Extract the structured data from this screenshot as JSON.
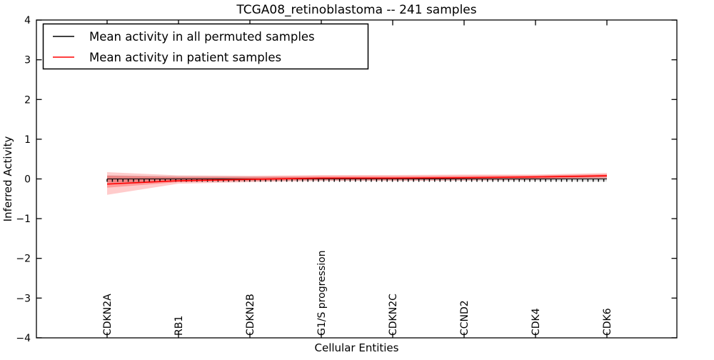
{
  "chart_data": {
    "type": "line",
    "title": "TCGA08_retinoblastoma -- 241 samples",
    "xlabel": "Cellular Entities",
    "ylabel": "Inferred Activity",
    "ylim": [
      -4,
      4
    ],
    "grid": false,
    "axes_background": "#ffffff",
    "ytick_values": [
      4,
      3,
      2,
      1,
      0,
      -1,
      -2,
      -3,
      -4
    ],
    "ytick_labels": [
      "4",
      "3",
      "2",
      "1",
      "0",
      "−1",
      "−2",
      "−3",
      "−4"
    ],
    "categories": [
      "CDKN2A",
      "RB1",
      "CDKN2B",
      "G1/S progression",
      "CDKN2C",
      "CCND2",
      "CDK4",
      "CDK6"
    ],
    "xtick_rotation": 90,
    "legend": {
      "position": "upper left",
      "entries": [
        {
          "label": "Mean activity in all permuted samples",
          "color": "#000000"
        },
        {
          "label": "Mean activity in patient samples",
          "color": "#ff0000"
        }
      ]
    },
    "series": [
      {
        "name": "Mean activity in all permuted samples",
        "color": "#000000",
        "marker": "tick-down",
        "values": [
          0.0,
          0.0,
          0.0,
          0.0,
          0.0,
          0.0,
          0.0,
          0.0
        ],
        "band": {
          "color": "#888888",
          "opacity": 0.3,
          "upper": [
            0.09,
            0.07,
            0.06,
            0.05,
            0.05,
            0.05,
            0.05,
            0.06
          ],
          "lower": [
            -0.09,
            -0.07,
            -0.06,
            -0.05,
            -0.05,
            -0.05,
            -0.05,
            -0.06
          ]
        }
      },
      {
        "name": "Mean activity in patient samples",
        "color": "#ff0000",
        "marker": "none",
        "values": [
          -0.13,
          -0.045,
          -0.01,
          0.02,
          0.02,
          0.03,
          0.05,
          0.08
        ],
        "band_outer": {
          "color": "#ff0000",
          "opacity": 0.2,
          "upper": [
            0.17,
            0.09,
            0.08,
            0.1,
            0.1,
            0.11,
            0.11,
            0.15
          ],
          "lower": [
            -0.4,
            -0.12,
            -0.08,
            -0.05,
            -0.05,
            -0.04,
            -0.02,
            0.01
          ]
        },
        "band_inner": {
          "color": "#ff0000",
          "opacity": 0.25,
          "upper": [
            0.08,
            0.05,
            0.05,
            0.07,
            0.07,
            0.08,
            0.09,
            0.12
          ],
          "lower": [
            -0.22,
            -0.08,
            -0.05,
            -0.02,
            -0.02,
            -0.01,
            0.0,
            0.04
          ]
        }
      }
    ]
  }
}
